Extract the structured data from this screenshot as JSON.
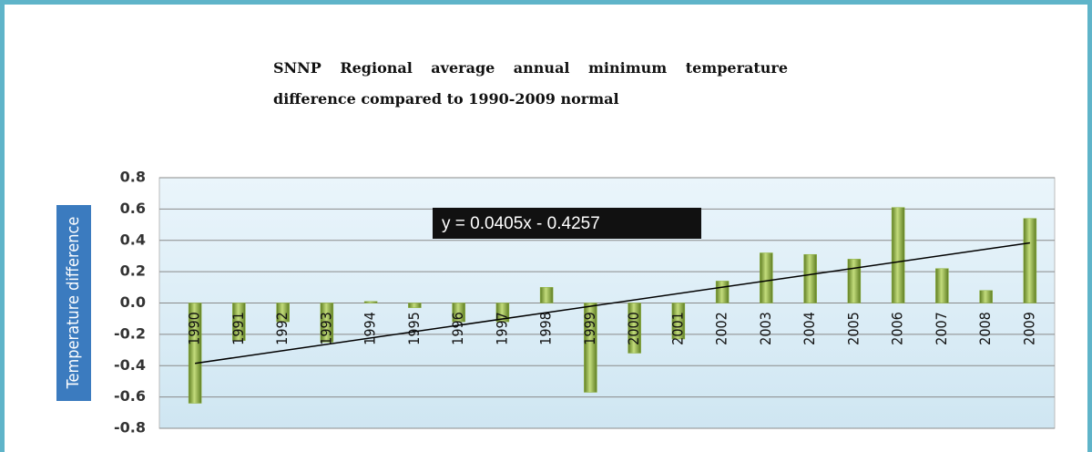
{
  "chart_data": {
    "type": "bar",
    "title": "SNNP Regional average annual minimum temperature difference compared to 1990-2009 normal",
    "y_label": "Temperature difference",
    "categories": [
      "1990",
      "1991",
      "1992",
      "1993",
      "1994",
      "1995",
      "1996",
      "1997",
      "1998",
      "1999",
      "2000",
      "2001",
      "2002",
      "2003",
      "2004",
      "2005",
      "2006",
      "2007",
      "2008",
      "2009"
    ],
    "values": [
      -0.64,
      -0.24,
      -0.12,
      -0.25,
      0.01,
      -0.03,
      -0.12,
      -0.12,
      0.1,
      -0.57,
      -0.32,
      -0.23,
      0.14,
      0.32,
      0.31,
      0.28,
      0.61,
      0.22,
      0.08,
      0.54
    ],
    "color": "#8fb33e",
    "ylim": [
      -0.8,
      0.8
    ],
    "yticks": [
      -0.8,
      -0.6,
      -0.4,
      -0.2,
      {
        "value": 0,
        "label": "0.0"
      },
      0.2,
      0.4,
      0.6,
      0.8
    ],
    "grid": true,
    "trendline": {
      "slope": 0.0405,
      "intercept": -0.4257,
      "label": "y = 0.0405x - 0.4257"
    }
  }
}
